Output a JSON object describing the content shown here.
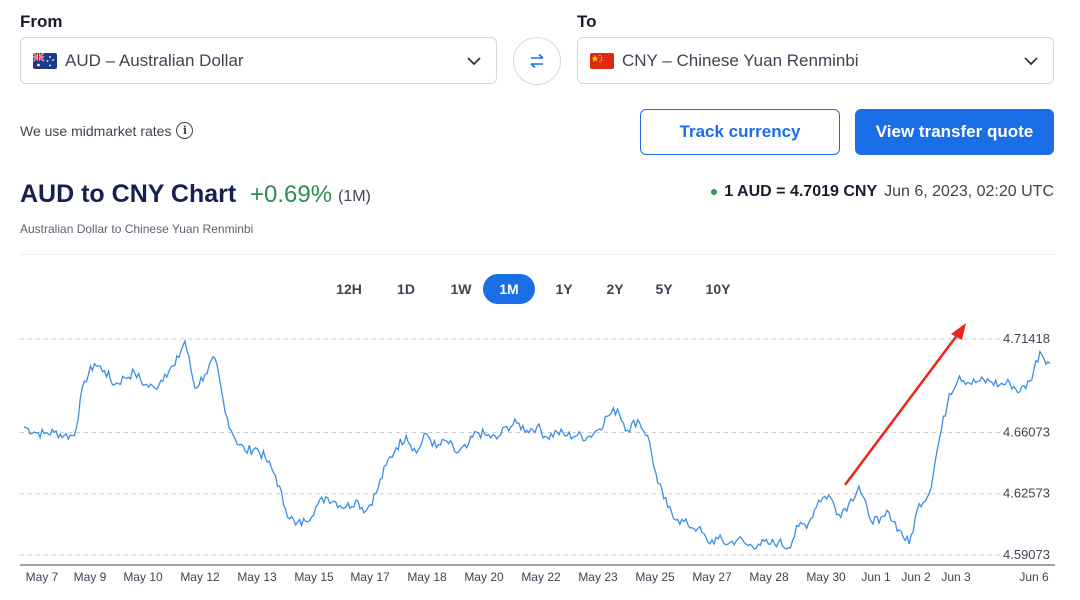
{
  "from": {
    "label": "From",
    "currency": "AUD – Australian Dollar",
    "flag": "australia-flag"
  },
  "to": {
    "label": "To",
    "currency": "CNY – Chinese Yuan Renminbi",
    "flag": "china-flag"
  },
  "note": "We use midmarket rates",
  "buttons": {
    "track": "Track currency",
    "quote": "View transfer quote"
  },
  "header": {
    "title": "AUD to CNY Chart",
    "change": "+0.69%",
    "period": "(1M)",
    "subtitle": "Australian Dollar to Chinese Yuan Renminbi",
    "rate": "1 AUD = 4.7019 CNY",
    "timestamp": "Jun 6, 2023, 02:20 UTC"
  },
  "ranges": [
    "12H",
    "1D",
    "1W",
    "1M",
    "1Y",
    "2Y",
    "5Y",
    "10Y"
  ],
  "active_range": "1M",
  "colors": {
    "accent": "#1a6fe6",
    "positive": "#2e8b57",
    "line": "#3a8ee6",
    "arrow": "#e8261c"
  },
  "chart_data": {
    "type": "line",
    "x_labels": [
      "May 7",
      "May 9",
      "May 10",
      "May 12",
      "May 13",
      "May 15",
      "May 17",
      "May 18",
      "May 20",
      "May 22",
      "May 23",
      "May 25",
      "May 27",
      "May 28",
      "May 30",
      "Jun 1",
      "Jun 2",
      "Jun 3",
      "Jun 6"
    ],
    "y_ticks": [
      "4.71418",
      "4.66073",
      "4.62573",
      "4.59073"
    ],
    "y_tick_values": [
      4.71418,
      4.66073,
      4.62573,
      4.59073
    ],
    "ylim": [
      4.585,
      4.725
    ],
    "grid": "horizontal-dashed",
    "series": [
      {
        "values": [
          4.664,
          4.661,
          4.66,
          4.661,
          4.659,
          4.659,
          4.69,
          4.7,
          4.696,
          4.688,
          4.692,
          4.695,
          4.688,
          4.686,
          4.694,
          4.699,
          4.713,
          4.686,
          4.694,
          4.703,
          4.672,
          4.657,
          4.65,
          4.652,
          4.646,
          4.636,
          4.617,
          4.608,
          4.61,
          4.618,
          4.624,
          4.621,
          4.618,
          4.622,
          4.616,
          4.626,
          4.642,
          4.652,
          4.659,
          4.649,
          4.66,
          4.652,
          4.656,
          4.649,
          4.652,
          4.661,
          4.659,
          4.657,
          4.664,
          4.666,
          4.662,
          4.664,
          4.658,
          4.661,
          4.659,
          4.659,
          4.658,
          4.662,
          4.67,
          4.674,
          4.662,
          4.668,
          4.659,
          4.632,
          4.618,
          4.611,
          4.608,
          4.606,
          4.598,
          4.6,
          4.597,
          4.6,
          4.596,
          4.597,
          4.597,
          4.598,
          4.595,
          4.607,
          4.609,
          4.622,
          4.625,
          4.614,
          4.62,
          4.63,
          4.613,
          4.609,
          4.615,
          4.605,
          4.597,
          4.62,
          4.626,
          4.657,
          4.683,
          4.693,
          4.689,
          4.69,
          4.69,
          4.688,
          4.689,
          4.684,
          4.69,
          4.707,
          4.7
        ]
      }
    ],
    "annotation": "red-trend-arrow"
  }
}
